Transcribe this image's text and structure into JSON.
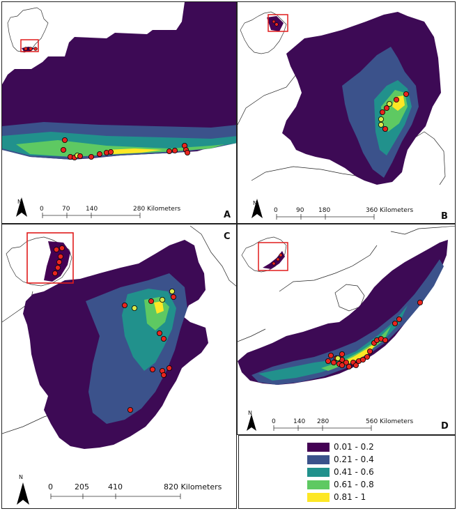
{
  "panels": [
    {
      "id": "A",
      "letter": "A",
      "scale_ticks": [
        "0",
        "70",
        "140"
      ],
      "scale_end": "280 Kilometers"
    },
    {
      "id": "B",
      "letter": "B",
      "scale_ticks": [
        "0",
        "90",
        "180"
      ],
      "scale_end": "360 Kilometers"
    },
    {
      "id": "C",
      "letter": "C",
      "scale_ticks": [
        "0",
        "205",
        "410"
      ],
      "scale_end": "820 Kilometers"
    },
    {
      "id": "D",
      "letter": "D",
      "scale_ticks": [
        "0",
        "140",
        "280"
      ],
      "scale_end": "560 Kilometers"
    }
  ],
  "north_label": "N",
  "legend": [
    {
      "label": "0.01 - 0.2",
      "color": "#440154"
    },
    {
      "label": "0.21 - 0.4",
      "color": "#3b528b"
    },
    {
      "label": "0.41 - 0.6",
      "color": "#21918c"
    },
    {
      "label": "0.61 - 0.8",
      "color": "#5ec962"
    },
    {
      "label": "0.81 - 1",
      "color": "#fde725"
    }
  ],
  "colors": {
    "occurrence": "#e8251f",
    "occurrence_alt": "#d8e84a",
    "inset_frame": "#e01b1b"
  }
}
